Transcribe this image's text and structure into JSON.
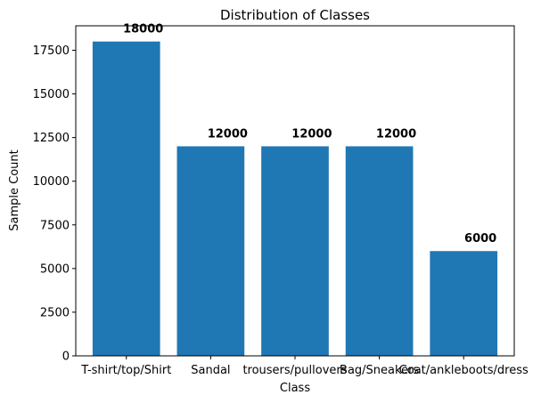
{
  "chart_data": {
    "type": "bar",
    "title": "Distribution of Classes",
    "xlabel": "Class",
    "ylabel": "Sample Count",
    "categories": [
      "T-shirt/top/Shirt",
      "Sandal",
      "trousers/pullovers",
      "Bag/Sneakers",
      "Coat/ankleboots/dress"
    ],
    "values": [
      18000,
      12000,
      12000,
      12000,
      6000
    ],
    "data_labels": [
      "18000",
      "12000",
      "12000",
      "12000",
      "6000"
    ],
    "ylim": [
      0,
      18900
    ],
    "yticks": [
      0,
      2500,
      5000,
      7500,
      10000,
      12500,
      15000,
      17500
    ],
    "grid": false,
    "bar_color": "#1f77b4"
  }
}
